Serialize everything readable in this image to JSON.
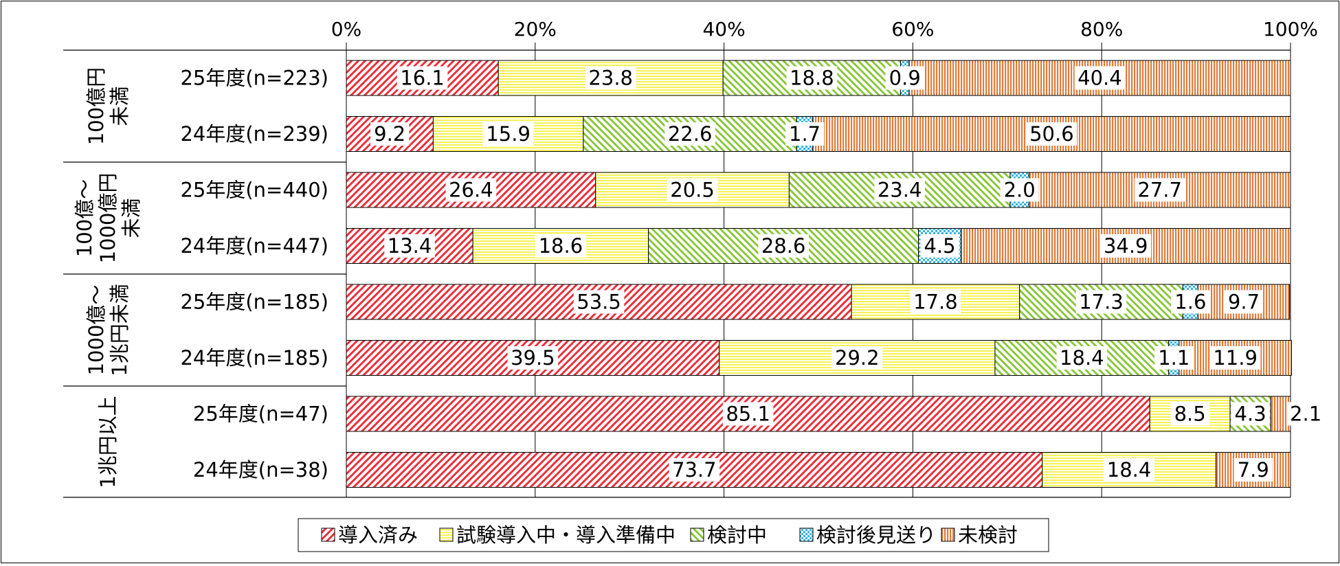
{
  "chart_data": {
    "type": "bar",
    "orientation": "horizontal",
    "stacked": true,
    "percent_axis": true,
    "x_ticks": [
      "0%",
      "20%",
      "40%",
      "60%",
      "80%",
      "100%"
    ],
    "xlim": [
      0,
      100
    ],
    "legend_position": "bottom",
    "groups": [
      {
        "label_lines": [
          "100億円",
          "未満"
        ],
        "rows": [
          "25年度(n=223)",
          "24年度(n=239)"
        ]
      },
      {
        "label_lines": [
          "100億～",
          "1000億円",
          "未満"
        ],
        "rows": [
          "25年度(n=440)",
          "24年度(n=447)"
        ]
      },
      {
        "label_lines": [
          "1000億～",
          "1兆円未満"
        ],
        "rows": [
          "25年度(n=185)",
          "24年度(n=185)"
        ]
      },
      {
        "label_lines": [
          "1兆円以上"
        ],
        "rows": [
          "25年度(n=47)",
          "24年度(n=38)"
        ]
      }
    ],
    "categories": [
      "25年度(n=223)",
      "24年度(n=239)",
      "25年度(n=440)",
      "24年度(n=447)",
      "25年度(n=185)",
      "24年度(n=185)",
      "25年度(n=47)",
      "24年度(n=38)"
    ],
    "series": [
      {
        "name": "導入済み",
        "color": "#e8323c",
        "pattern": "diag-left",
        "values": [
          16.1,
          9.2,
          26.4,
          13.4,
          53.5,
          39.5,
          85.1,
          73.7
        ]
      },
      {
        "name": "試験導入中・導入準備中",
        "color": "#f7f259",
        "pattern": "horiz",
        "values": [
          23.8,
          15.9,
          20.5,
          18.6,
          17.8,
          29.2,
          8.5,
          18.4
        ]
      },
      {
        "name": "検討中",
        "color": "#8cc63f",
        "pattern": "diag-right",
        "values": [
          18.8,
          22.6,
          23.4,
          28.6,
          17.3,
          18.4,
          4.3,
          0
        ]
      },
      {
        "name": "検討後見送り",
        "color": "#33b5e5",
        "pattern": "dots",
        "values": [
          0.9,
          1.7,
          2.0,
          4.5,
          1.6,
          1.1,
          0,
          0
        ]
      },
      {
        "name": "未検討",
        "color": "#e07b39",
        "pattern": "vert",
        "values": [
          40.4,
          50.6,
          27.7,
          34.9,
          9.7,
          11.9,
          2.1,
          7.9
        ]
      }
    ]
  }
}
